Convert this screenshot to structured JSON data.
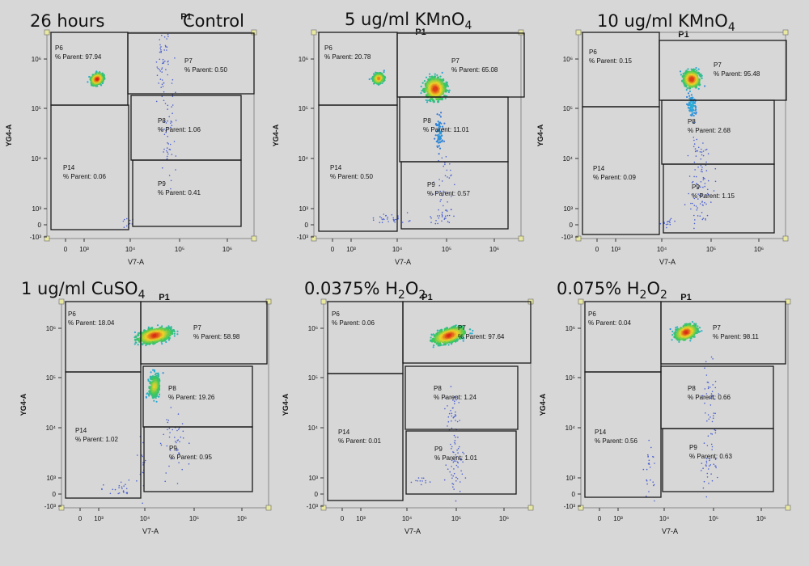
{
  "header": {
    "timepoint": "26 hours"
  },
  "chart_data": [
    {
      "type": "scatter",
      "condition": {
        "main": "Control",
        "formula": []
      },
      "title": "P1",
      "xlabel": "V7-A",
      "ylabel": "YG4-A",
      "x_ticks": [
        "0",
        "10³",
        "10⁴",
        "10⁵",
        "10⁶"
      ],
      "y_ticks": [
        "10⁶",
        "10⁵",
        "10⁴",
        "10³",
        "0",
        "-10³"
      ],
      "gates": [
        {
          "name": "P6",
          "value": "97.94"
        },
        {
          "name": "P7",
          "value": "0.50"
        },
        {
          "name": "P8",
          "value": "1.06"
        },
        {
          "name": "P9",
          "value": "0.41"
        },
        {
          "name": "P14",
          "value": "0.06"
        }
      ]
    },
    {
      "type": "scatter",
      "condition": {
        "main": "5 ug/ml ",
        "formula": [
          {
            "t": "KMnO"
          },
          {
            "s": "4"
          }
        ]
      },
      "title": "P1",
      "xlabel": "V7-A",
      "ylabel": "YG4-A",
      "x_ticks": [
        "0",
        "10³",
        "10⁴",
        "10⁵",
        "10⁶"
      ],
      "y_ticks": [
        "10⁶",
        "10⁵",
        "10⁴",
        "10³",
        "0",
        "-10³"
      ],
      "gates": [
        {
          "name": "P6",
          "value": "20.78"
        },
        {
          "name": "P7",
          "value": "65.08"
        },
        {
          "name": "P8",
          "value": "11.01"
        },
        {
          "name": "P9",
          "value": "0.57"
        },
        {
          "name": "P14",
          "value": "0.50"
        }
      ]
    },
    {
      "type": "scatter",
      "condition": {
        "main": "10 ug/ml ",
        "formula": [
          {
            "t": "KMnO"
          },
          {
            "s": "4"
          }
        ]
      },
      "title": "P1",
      "xlabel": "V7-A",
      "ylabel": "YG4-A",
      "x_ticks": [
        "0",
        "10³",
        "10⁴",
        "10⁵",
        "10⁶"
      ],
      "y_ticks": [
        "10⁶",
        "10⁵",
        "10⁴",
        "10³",
        "0",
        "-10³"
      ],
      "gates": [
        {
          "name": "P6",
          "value": "0.15"
        },
        {
          "name": "P7",
          "value": "95.48"
        },
        {
          "name": "P8",
          "value": "2.68"
        },
        {
          "name": "P9",
          "value": "1.15"
        },
        {
          "name": "P14",
          "value": "0.09"
        }
      ]
    },
    {
      "type": "scatter",
      "condition": {
        "main": "1 ug/ml ",
        "formula": [
          {
            "t": "CuSO"
          },
          {
            "s": "4"
          }
        ]
      },
      "title": "P1",
      "xlabel": "V7-A",
      "ylabel": "YG4-A",
      "x_ticks": [
        "0",
        "10³",
        "10⁴",
        "10⁵",
        "10⁶"
      ],
      "y_ticks": [
        "10⁶",
        "10⁵",
        "10⁴",
        "10³",
        "0",
        "-10³"
      ],
      "gates": [
        {
          "name": "P6",
          "value": "18.04"
        },
        {
          "name": "P7",
          "value": "58.98"
        },
        {
          "name": "P8",
          "value": "19.26"
        },
        {
          "name": "P9",
          "value": "0.95"
        },
        {
          "name": "P14",
          "value": "1.02"
        }
      ]
    },
    {
      "type": "scatter",
      "condition": {
        "main": "0.0375% ",
        "formula": [
          {
            "t": "H"
          },
          {
            "s": "2"
          },
          {
            "t": "O"
          },
          {
            "s": "2"
          }
        ]
      },
      "title": "P1",
      "xlabel": "V7-A",
      "ylabel": "YG4-A",
      "x_ticks": [
        "0",
        "10³",
        "10⁴",
        "10⁵",
        "10⁶"
      ],
      "y_ticks": [
        "10⁶",
        "10⁵",
        "10⁴",
        "10³",
        "0",
        "-10³"
      ],
      "gates": [
        {
          "name": "P6",
          "value": "0.06"
        },
        {
          "name": "P7",
          "value": "97.64"
        },
        {
          "name": "P8",
          "value": "1.24"
        },
        {
          "name": "P9",
          "value": "1.01"
        },
        {
          "name": "P14",
          "value": "0.01"
        }
      ]
    },
    {
      "type": "scatter",
      "condition": {
        "main": "0.075% ",
        "formula": [
          {
            "t": "H"
          },
          {
            "s": "2"
          },
          {
            "t": "O"
          },
          {
            "s": "2"
          }
        ]
      },
      "title": "P1",
      "xlabel": "V7-A",
      "ylabel": "YG4-A",
      "x_ticks": [
        "0",
        "10³",
        "10⁴",
        "10⁵",
        "10⁶"
      ],
      "y_ticks": [
        "10⁶",
        "10⁵",
        "10⁴",
        "10³",
        "0",
        "-10³"
      ],
      "gates": [
        {
          "name": "P6",
          "value": "0.04"
        },
        {
          "name": "P7",
          "value": "98.11"
        },
        {
          "name": "P8",
          "value": "0.66"
        },
        {
          "name": "P9",
          "value": "0.63"
        },
        {
          "name": "P14",
          "value": "0.56"
        }
      ]
    }
  ],
  "labels": {
    "parent_prefix": "% Parent: "
  },
  "colors": {
    "background": "#d7d7d7",
    "gate": "#1a1a1a",
    "axis": "#8a8a8a",
    "dot": "#4a5fd0",
    "handle": "#e8e8a0"
  }
}
